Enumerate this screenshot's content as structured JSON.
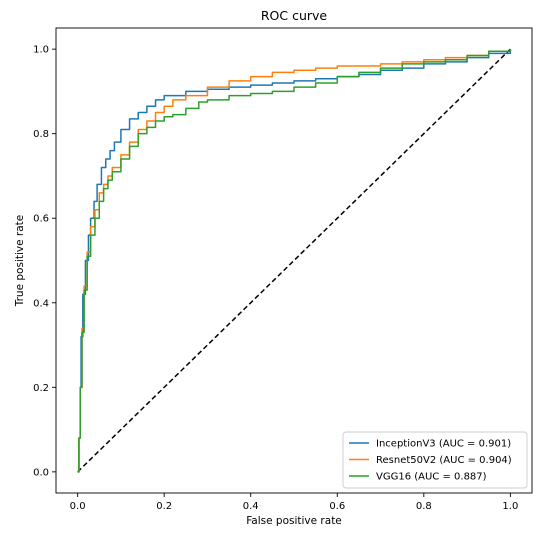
{
  "chart_data": {
    "type": "line",
    "title": "ROC curve",
    "xlabel": "False positive rate",
    "ylabel": "True positive rate",
    "xlim": [
      -0.05,
      1.05
    ],
    "ylim": [
      -0.05,
      1.05
    ],
    "xticks": [
      0.0,
      0.2,
      0.4,
      0.6,
      0.8,
      1.0
    ],
    "yticks": [
      0.0,
      0.2,
      0.4,
      0.6,
      0.8,
      1.0
    ],
    "xtick_labels": [
      "0.0",
      "0.2",
      "0.4",
      "0.6",
      "0.8",
      "1.0"
    ],
    "ytick_labels": [
      "0.0",
      "0.2",
      "0.4",
      "0.6",
      "0.8",
      "1.0"
    ],
    "grid": false,
    "legend_position": "lower-right",
    "series": [
      {
        "name": "InceptionV3 (AUC = 0.901)",
        "color": "#1f77b4",
        "points": [
          [
            0,
            0
          ],
          [
            0.003,
            0.08
          ],
          [
            0.006,
            0.2
          ],
          [
            0.008,
            0.32
          ],
          [
            0.012,
            0.42
          ],
          [
            0.018,
            0.5
          ],
          [
            0.025,
            0.56
          ],
          [
            0.03,
            0.6
          ],
          [
            0.038,
            0.64
          ],
          [
            0.045,
            0.68
          ],
          [
            0.055,
            0.72
          ],
          [
            0.065,
            0.74
          ],
          [
            0.075,
            0.76
          ],
          [
            0.085,
            0.78
          ],
          [
            0.1,
            0.81
          ],
          [
            0.12,
            0.835
          ],
          [
            0.14,
            0.85
          ],
          [
            0.16,
            0.865
          ],
          [
            0.18,
            0.88
          ],
          [
            0.2,
            0.89
          ],
          [
            0.25,
            0.9
          ],
          [
            0.3,
            0.905
          ],
          [
            0.35,
            0.91
          ],
          [
            0.4,
            0.915
          ],
          [
            0.45,
            0.92
          ],
          [
            0.5,
            0.925
          ],
          [
            0.55,
            0.93
          ],
          [
            0.6,
            0.935
          ],
          [
            0.65,
            0.94
          ],
          [
            0.7,
            0.95
          ],
          [
            0.75,
            0.955
          ],
          [
            0.8,
            0.965
          ],
          [
            0.85,
            0.97
          ],
          [
            0.9,
            0.98
          ],
          [
            0.95,
            0.99
          ],
          [
            1.0,
            1.0
          ]
        ]
      },
      {
        "name": "Resnet50V2 (AUC = 0.904)",
        "color": "#ff7f0e",
        "points": [
          [
            0,
            0
          ],
          [
            0.003,
            0.08
          ],
          [
            0.006,
            0.2
          ],
          [
            0.01,
            0.34
          ],
          [
            0.015,
            0.44
          ],
          [
            0.022,
            0.52
          ],
          [
            0.03,
            0.58
          ],
          [
            0.04,
            0.62
          ],
          [
            0.05,
            0.66
          ],
          [
            0.06,
            0.68
          ],
          [
            0.07,
            0.7
          ],
          [
            0.08,
            0.72
          ],
          [
            0.1,
            0.75
          ],
          [
            0.12,
            0.78
          ],
          [
            0.14,
            0.81
          ],
          [
            0.16,
            0.83
          ],
          [
            0.18,
            0.85
          ],
          [
            0.2,
            0.865
          ],
          [
            0.22,
            0.88
          ],
          [
            0.25,
            0.89
          ],
          [
            0.3,
            0.91
          ],
          [
            0.35,
            0.925
          ],
          [
            0.4,
            0.935
          ],
          [
            0.45,
            0.945
          ],
          [
            0.5,
            0.95
          ],
          [
            0.55,
            0.955
          ],
          [
            0.6,
            0.96
          ],
          [
            0.65,
            0.96
          ],
          [
            0.7,
            0.965
          ],
          [
            0.75,
            0.97
          ],
          [
            0.8,
            0.975
          ],
          [
            0.85,
            0.98
          ],
          [
            0.9,
            0.985
          ],
          [
            0.95,
            0.995
          ],
          [
            1.0,
            1.0
          ]
        ]
      },
      {
        "name": "VGG16 (AUC = 0.887)",
        "color": "#2ca02c",
        "points": [
          [
            0,
            0
          ],
          [
            0.003,
            0.08
          ],
          [
            0.006,
            0.2
          ],
          [
            0.01,
            0.33
          ],
          [
            0.015,
            0.43
          ],
          [
            0.022,
            0.51
          ],
          [
            0.03,
            0.56
          ],
          [
            0.04,
            0.6
          ],
          [
            0.05,
            0.64
          ],
          [
            0.06,
            0.67
          ],
          [
            0.07,
            0.69
          ],
          [
            0.08,
            0.71
          ],
          [
            0.1,
            0.74
          ],
          [
            0.12,
            0.77
          ],
          [
            0.14,
            0.8
          ],
          [
            0.16,
            0.815
          ],
          [
            0.18,
            0.83
          ],
          [
            0.2,
            0.84
          ],
          [
            0.22,
            0.845
          ],
          [
            0.25,
            0.86
          ],
          [
            0.28,
            0.875
          ],
          [
            0.3,
            0.88
          ],
          [
            0.35,
            0.89
          ],
          [
            0.4,
            0.895
          ],
          [
            0.45,
            0.9
          ],
          [
            0.5,
            0.91
          ],
          [
            0.55,
            0.92
          ],
          [
            0.6,
            0.935
          ],
          [
            0.65,
            0.945
          ],
          [
            0.7,
            0.955
          ],
          [
            0.75,
            0.965
          ],
          [
            0.8,
            0.97
          ],
          [
            0.85,
            0.975
          ],
          [
            0.9,
            0.985
          ],
          [
            0.95,
            0.995
          ],
          [
            1.0,
            1.0
          ]
        ]
      }
    ],
    "reference_line": {
      "points": [
        [
          0,
          0
        ],
        [
          1,
          1
        ]
      ],
      "color": "#000000",
      "style": "dashed"
    }
  }
}
